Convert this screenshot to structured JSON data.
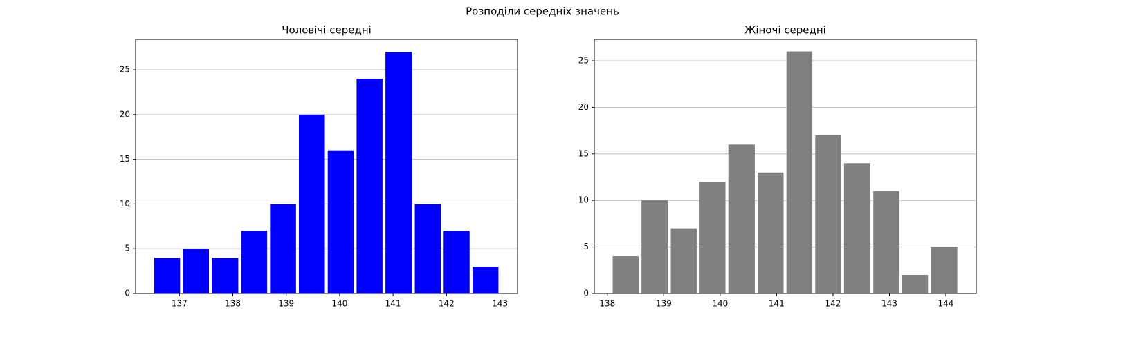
{
  "title": "Розподіли середніх значень",
  "chart_data": [
    {
      "type": "histogram",
      "title": "Чоловічі середні",
      "bins": [
        136.5,
        137.04,
        137.58,
        138.13,
        138.67,
        139.21,
        139.75,
        140.29,
        140.83,
        141.38,
        141.92,
        142.46,
        143.0
      ],
      "values": [
        4,
        5,
        4,
        7,
        10,
        20,
        16,
        24,
        27,
        10,
        7,
        3
      ],
      "color": "#0000ff",
      "xlim": [
        136.18,
        143.33
      ],
      "xticks": [
        137,
        138,
        139,
        140,
        141,
        142,
        143
      ],
      "ylim": [
        0,
        28.4
      ],
      "yticks": [
        0,
        5,
        10,
        15,
        20,
        25
      ],
      "grid": "y"
    },
    {
      "type": "histogram",
      "title": "Жіночі середні",
      "bins": [
        138.07,
        138.58,
        139.1,
        139.61,
        140.12,
        140.64,
        141.15,
        141.66,
        142.17,
        142.69,
        143.2,
        143.71,
        144.23
      ],
      "values": [
        4,
        10,
        7,
        12,
        16,
        13,
        26,
        17,
        14,
        11,
        2,
        5
      ],
      "color": "#808080",
      "xlim": [
        137.77,
        144.54
      ],
      "xticks": [
        138,
        139,
        140,
        141,
        142,
        143,
        144
      ],
      "ylim": [
        0,
        27.3
      ],
      "yticks": [
        0,
        5,
        10,
        15,
        20,
        25
      ],
      "grid": "y"
    }
  ]
}
